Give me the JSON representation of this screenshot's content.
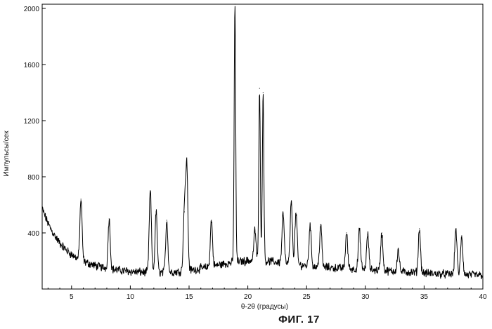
{
  "figure_caption": "ФИГ. 17",
  "chart_data": {
    "type": "line",
    "title": "",
    "xlabel": "θ-2θ (градусы)",
    "ylabel": "Импульсы/сек",
    "xlim": [
      2.5,
      40
    ],
    "ylim": [
      0,
      2030
    ],
    "x_ticks": [
      5,
      10,
      15,
      20,
      25,
      30,
      35,
      40
    ],
    "y_ticks": [
      400,
      800,
      1200,
      1600,
      2000
    ],
    "grid": false,
    "legend": "none",
    "line_color": "#000000",
    "peaks": [
      {
        "x": 5.8,
        "y": 640
      },
      {
        "x": 8.2,
        "y": 500
      },
      {
        "x": 11.7,
        "y": 700
      },
      {
        "x": 12.2,
        "y": 550
      },
      {
        "x": 13.1,
        "y": 490
      },
      {
        "x": 14.6,
        "y": 550
      },
      {
        "x": 14.8,
        "y": 880
      },
      {
        "x": 16.9,
        "y": 490
      },
      {
        "x": 18.9,
        "y": 2030
      },
      {
        "x": 20.6,
        "y": 420
      },
      {
        "x": 21.0,
        "y": 1430
      },
      {
        "x": 21.3,
        "y": 1400
      },
      {
        "x": 23.0,
        "y": 540
      },
      {
        "x": 23.7,
        "y": 620
      },
      {
        "x": 24.1,
        "y": 540
      },
      {
        "x": 25.3,
        "y": 460
      },
      {
        "x": 26.2,
        "y": 460
      },
      {
        "x": 28.4,
        "y": 400
      },
      {
        "x": 29.5,
        "y": 420
      },
      {
        "x": 30.2,
        "y": 390
      },
      {
        "x": 31.4,
        "y": 400
      },
      {
        "x": 32.8,
        "y": 280
      },
      {
        "x": 34.6,
        "y": 430
      },
      {
        "x": 37.7,
        "y": 430
      },
      {
        "x": 38.2,
        "y": 380
      }
    ]
  }
}
